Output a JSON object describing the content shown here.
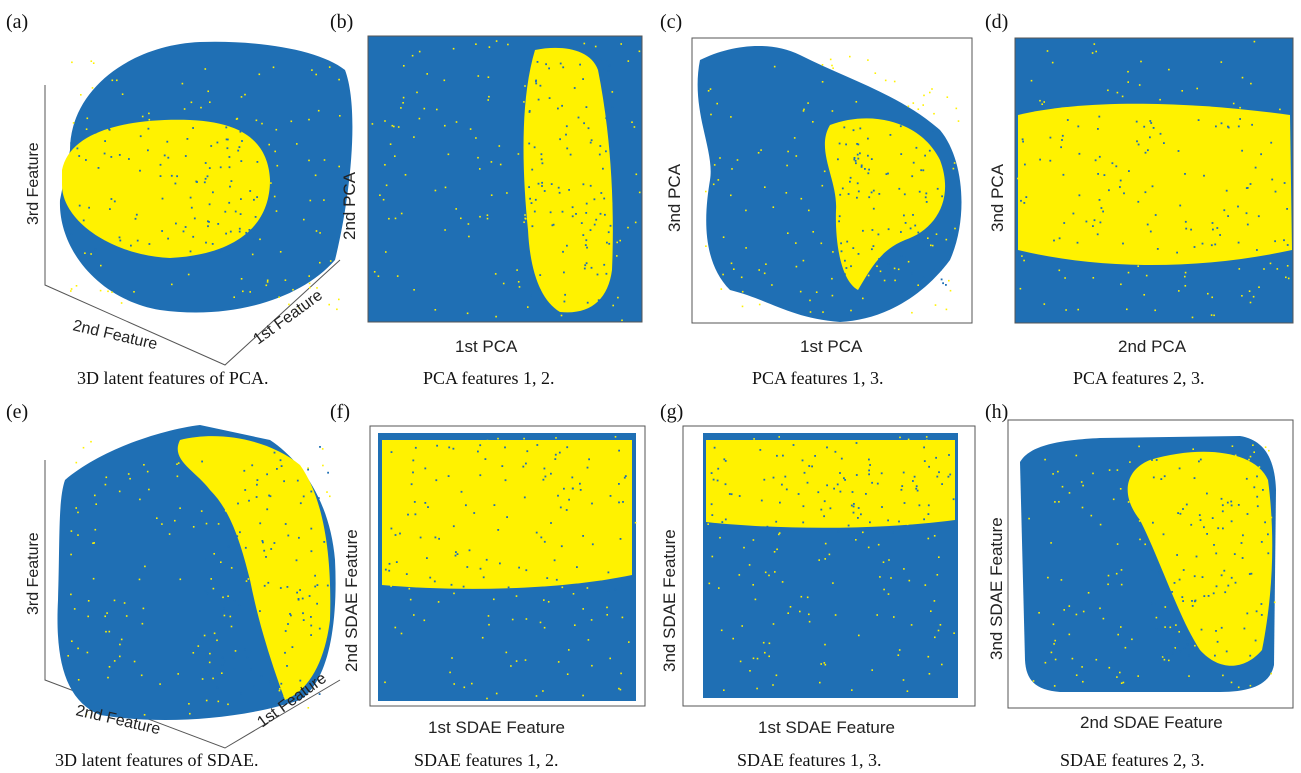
{
  "chart_data": [
    {
      "panel": "(a)",
      "type": "scatter",
      "caption": "3D latent features of PCA.",
      "xlabel": "2nd Feature",
      "ylabel": "3rd Feature",
      "zlabel": "1st Feature",
      "series_colors": {
        "majority": "#1f6fb4",
        "minority": "#fff200"
      }
    },
    {
      "panel": "(b)",
      "type": "scatter",
      "caption": "PCA features 1, 2.",
      "xlabel": "1st PCA",
      "ylabel": "2nd PCA",
      "series_colors": {
        "majority": "#1f6fb4",
        "minority": "#fff200"
      }
    },
    {
      "panel": "(c)",
      "type": "scatter",
      "caption": "PCA features 1, 3.",
      "xlabel": "1st PCA",
      "ylabel": "3nd PCA",
      "series_colors": {
        "majority": "#1f6fb4",
        "minority": "#fff200"
      }
    },
    {
      "panel": "(d)",
      "type": "scatter",
      "caption": "PCA features 2, 3.",
      "xlabel": "2nd PCA",
      "ylabel": "3nd PCA",
      "series_colors": {
        "majority": "#1f6fb4",
        "minority": "#fff200"
      }
    },
    {
      "panel": "(e)",
      "type": "scatter",
      "caption": "3D latent features of SDAE.",
      "xlabel": "2nd Feature",
      "ylabel": "3rd Feature",
      "zlabel": "1st Feature",
      "series_colors": {
        "majority": "#1f6fb4",
        "minority": "#fff200"
      }
    },
    {
      "panel": "(f)",
      "type": "scatter",
      "caption": "SDAE features 1, 2.",
      "xlabel": "1st SDAE Feature",
      "ylabel": "2nd SDAE Feature",
      "series_colors": {
        "majority": "#1f6fb4",
        "minority": "#fff200"
      }
    },
    {
      "panel": "(g)",
      "type": "scatter",
      "caption": "SDAE features 1, 3.",
      "xlabel": "1st SDAE Feature",
      "ylabel": "3nd SDAE Feature",
      "series_colors": {
        "majority": "#1f6fb4",
        "minority": "#fff200"
      }
    },
    {
      "panel": "(h)",
      "type": "scatter",
      "caption": "SDAE features 2, 3.",
      "xlabel": "2nd SDAE Feature",
      "ylabel": "3nd SDAE Feature",
      "series_colors": {
        "majority": "#1f6fb4",
        "minority": "#fff200"
      }
    }
  ]
}
